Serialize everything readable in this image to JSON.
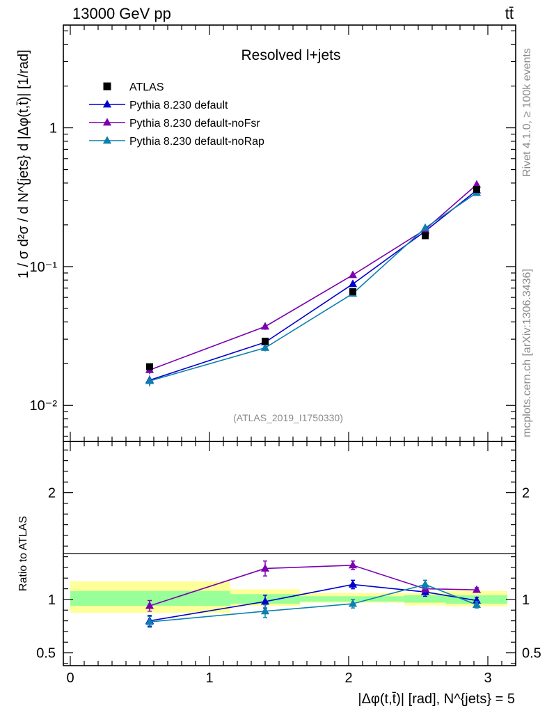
{
  "header": {
    "energy_label": "13000 GeV pp",
    "process_label": "tt̄"
  },
  "side_labels": {
    "rivet": "Rivet 4.1.0, ≥ 100k events",
    "site": "mcplots.cern.ch [arXiv:1306.3436]"
  },
  "chart_data": [
    {
      "type": "line",
      "panel": "main",
      "title": "Resolved l+jets",
      "analysis_label": "(ATLAS_2019_I1750330)",
      "ylabel": "1 / σ d²σ / d N^{jets} d |Δφ(t,t̄)| [1/rad]",
      "yscale": "log",
      "ylim": [
        0.0055,
        5.5
      ],
      "xlim": [
        -0.05,
        3.2
      ],
      "y_tick_labels": [
        "10⁻²",
        "10⁻¹",
        "1"
      ],
      "x": [
        0.57,
        1.4,
        2.03,
        2.55,
        2.92
      ],
      "legend": [
        "ATLAS",
        "Pythia 8.230 default",
        "Pythia 8.230 default-noFsr",
        "Pythia 8.230 default-noRap"
      ],
      "series": [
        {
          "name": "ATLAS",
          "color": "#000000",
          "marker": "square",
          "values": [
            0.019,
            0.029,
            0.066,
            0.167,
            0.36
          ]
        },
        {
          "name": "Pythia 8.230 default",
          "color": "#0000cc",
          "marker": "triangle",
          "values": [
            0.0152,
            0.0285,
            0.075,
            0.18,
            0.355
          ],
          "errors": [
            0.0012,
            0.0015,
            0.002,
            0.004,
            0.007
          ]
        },
        {
          "name": "Pythia 8.230 default-noFsr",
          "color": "#7a00b0",
          "marker": "triangle",
          "values": [
            0.018,
            0.037,
            0.087,
            0.185,
            0.39
          ],
          "errors": [
            0.0012,
            0.002,
            0.002,
            0.004,
            0.008
          ]
        },
        {
          "name": "Pythia 8.230 default-noRap",
          "color": "#0d80ad",
          "marker": "triangle",
          "values": [
            0.015,
            0.026,
            0.064,
            0.19,
            0.34
          ],
          "errors": [
            0.0013,
            0.0015,
            0.002,
            0.004,
            0.007
          ]
        }
      ]
    },
    {
      "type": "line",
      "panel": "ratio",
      "ylabel": "Ratio to ATLAS",
      "xlabel": "|Δφ(t,t̄)| [rad], N^{jets} = 5",
      "ylim": [
        0.38,
        2.48
      ],
      "xlim": [
        -0.05,
        3.2
      ],
      "y_tick_labels": [
        "0.5",
        "1",
        "2"
      ],
      "x_tick_labels": [
        "0",
        "1",
        "2",
        "3"
      ],
      "x": [
        0.57,
        1.4,
        2.03,
        2.55,
        2.92
      ],
      "bins": [
        [
          0,
          1.15
        ],
        [
          1.15,
          1.65
        ],
        [
          1.65,
          2.4
        ],
        [
          2.4,
          2.7
        ],
        [
          2.7,
          3.14
        ]
      ],
      "band_total": [
        [
          0.875,
          1.17
        ],
        [
          0.94,
          1.095
        ],
        [
          0.97,
          1.06
        ],
        [
          0.945,
          1.06
        ],
        [
          0.935,
          1.08
        ]
      ],
      "band_stat": [
        [
          0.94,
          1.08
        ],
        [
          0.96,
          1.05
        ],
        [
          0.98,
          1.03
        ],
        [
          0.97,
          1.04
        ],
        [
          0.96,
          1.04
        ]
      ],
      "series": [
        {
          "name": "Pythia 8.230 default",
          "color": "#0000cc",
          "values": [
            0.8,
            0.98,
            1.14,
            1.07,
            0.99
          ],
          "errors": [
            0.05,
            0.06,
            0.04,
            0.04,
            0.03
          ]
        },
        {
          "name": "Pythia 8.230 default-noFsr",
          "color": "#7a00b0",
          "values": [
            0.94,
            1.29,
            1.32,
            1.1,
            1.09
          ],
          "errors": [
            0.05,
            0.07,
            0.04,
            0.03,
            0.02
          ]
        },
        {
          "name": "Pythia 8.230 default-noRap",
          "color": "#0d80ad",
          "values": [
            0.79,
            0.89,
            0.96,
            1.14,
            0.95
          ],
          "errors": [
            0.05,
            0.06,
            0.04,
            0.04,
            0.03
          ]
        }
      ]
    }
  ]
}
